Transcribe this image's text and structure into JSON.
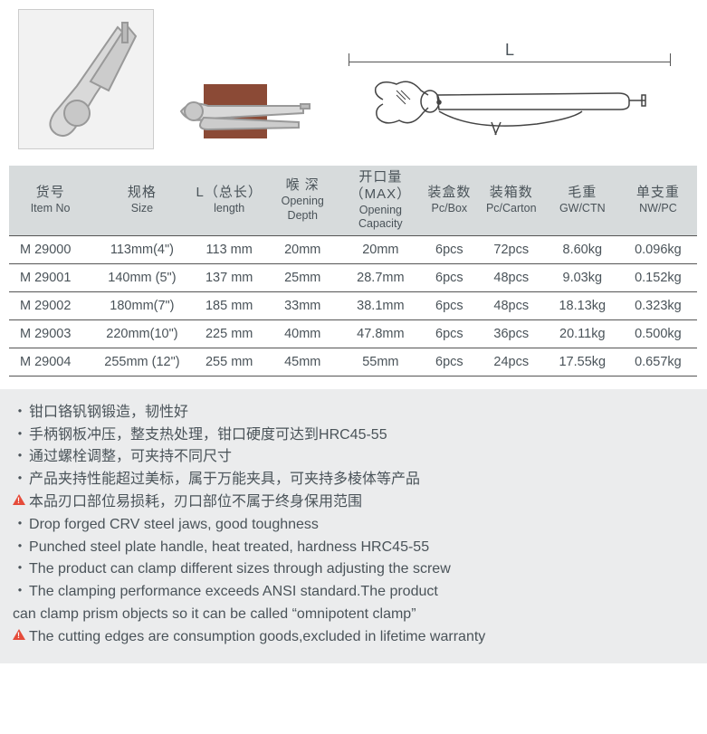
{
  "diagram_label": "L",
  "table": {
    "headers": [
      {
        "cn": "货号",
        "en": "Item No"
      },
      {
        "cn": "规格",
        "en": "Size"
      },
      {
        "cn": "L（总长）",
        "en": "length"
      },
      {
        "cn": "喉 深",
        "en": "Opening Depth"
      },
      {
        "cn": "开口量（MAX）",
        "en": "Opening Capacity"
      },
      {
        "cn": "装盒数",
        "en": "Pc/Box"
      },
      {
        "cn": "装箱数",
        "en": "Pc/Carton"
      },
      {
        "cn": "毛重",
        "en": "GW/CTN"
      },
      {
        "cn": "单支重",
        "en": "NW/PC"
      }
    ],
    "rows": [
      [
        "M 29000",
        "113mm(4\")",
        "113 mm",
        "20mm",
        "20mm",
        "6pcs",
        "72pcs",
        "8.60kg",
        "0.096kg"
      ],
      [
        "M 29001",
        "140mm (5\")",
        "137 mm",
        "25mm",
        "28.7mm",
        "6pcs",
        "48pcs",
        "9.03kg",
        "0.152kg"
      ],
      [
        "M 29002",
        "180mm(7\")",
        "185 mm",
        "33mm",
        "38.1mm",
        "6pcs",
        "48pcs",
        "18.13kg",
        "0.323kg"
      ],
      [
        "M 29003",
        "220mm(10\")",
        "225 mm",
        "40mm",
        "47.8mm",
        "6pcs",
        "36pcs",
        "20.11kg",
        "0.500kg"
      ],
      [
        "M 29004",
        "255mm (12\")",
        "255 mm",
        "45mm",
        "55mm",
        "6pcs",
        "24pcs",
        "17.55kg",
        "0.657kg"
      ]
    ],
    "col_widths": [
      "90px",
      "110px",
      "80px",
      "80px",
      "90px",
      "60px",
      "75px",
      "80px",
      "85px"
    ]
  },
  "description": {
    "lines": [
      {
        "prefix": "dot",
        "text": "钳口铬钒钢锻造，韧性好"
      },
      {
        "prefix": "dot",
        "text": "手柄钢板冲压，整支热处理，钳口硬度可达到HRC45-55"
      },
      {
        "prefix": "dot",
        "text": "通过螺栓调整，可夹持不同尺寸"
      },
      {
        "prefix": "dot",
        "text": "产品夹持性能超过美标，属于万能夹具，可夹持多棱体等产品"
      },
      {
        "prefix": "warn",
        "text": "本品刃口部位易损耗，刃口部位不属于终身保用范围"
      },
      {
        "prefix": "dot",
        "text": "Drop forged CRV steel jaws, good toughness"
      },
      {
        "prefix": "dot",
        "text": "Punched steel plate handle, heat treated, hardness HRC45-55"
      },
      {
        "prefix": "dot",
        "text": "The product can clamp different sizes through adjusting the screw"
      },
      {
        "prefix": "dot",
        "text": "The clamping performance exceeds ANSI standard.The product"
      },
      {
        "prefix": "none",
        "text": "can clamp prism objects so it can be called “omnipotent clamp”"
      },
      {
        "prefix": "warn",
        "text": "The cutting edges are consumption goods,excluded in lifetime warranty"
      }
    ]
  },
  "colors": {
    "header_bg": "#d7dbdc",
    "desc_bg": "#ebeced",
    "text": "#4a5359",
    "warn": "#e54b3a"
  }
}
